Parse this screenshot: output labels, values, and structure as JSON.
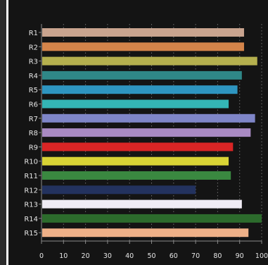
{
  "chart_data": {
    "type": "bar",
    "orientation": "horizontal",
    "categories": [
      "R1",
      "R2",
      "R3",
      "R4",
      "R5",
      "R6",
      "R7",
      "R8",
      "R9",
      "R10",
      "R11",
      "R12",
      "R13",
      "R14",
      "R15"
    ],
    "values": [
      92,
      92,
      98,
      91,
      89,
      85,
      97,
      95,
      87,
      85,
      86,
      70,
      91,
      100,
      94
    ],
    "colors": [
      "#c9a48f",
      "#d4844a",
      "#b5b04e",
      "#2f8787",
      "#2e95c0",
      "#34b5b5",
      "#7f86c8",
      "#a98ac3",
      "#d92525",
      "#d9d435",
      "#3a8840",
      "#23325e",
      "#f0ecf5",
      "#2c6b2c",
      "#eeb088"
    ],
    "x_ticks": [
      "0",
      "10",
      "20",
      "30",
      "40",
      "50",
      "60",
      "70",
      "80",
      "90",
      "100"
    ],
    "xlim": [
      0,
      100
    ],
    "grid": "vertical-dotted",
    "title": "",
    "xlabel": "",
    "ylabel": ""
  }
}
